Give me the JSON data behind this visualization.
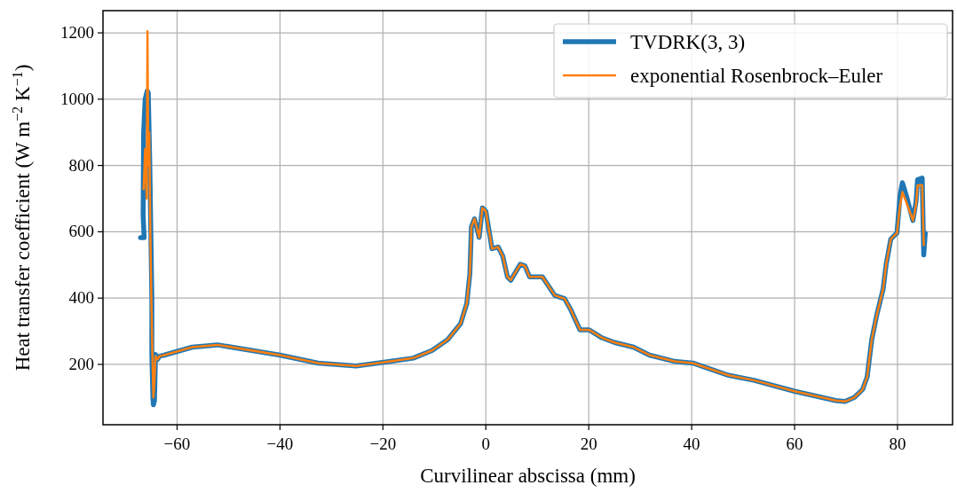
{
  "chart_data": {
    "type": "line",
    "xlabel": "Curvilinear abscissa (mm)",
    "ylabel": "Heat transfer coefficient (W m$^{−2}$ K$^{−1}$)",
    "xlim": [
      -74.4,
      90.7
    ],
    "ylim": [
      18,
      1267
    ],
    "xticks": [
      {
        "value": -60,
        "label": "−60"
      },
      {
        "value": -40,
        "label": "−40"
      },
      {
        "value": -20,
        "label": "−20"
      },
      0,
      20,
      40,
      60,
      80
    ],
    "yticks": [
      200,
      400,
      600,
      800,
      1000,
      1200
    ],
    "grid": true,
    "legend": "top right",
    "line_style": "solid",
    "marker": "none",
    "series": [
      {
        "name": "TVDRK(3, 3)",
        "color": "#1f77b4",
        "x": [
          -67.1,
          -66.4,
          -66.6,
          -66.5,
          -66.2,
          -65.8,
          -65.6,
          -65.3,
          -65.1,
          -64.9,
          -64.9,
          -64.7,
          -64.6,
          -64.4,
          -64.3,
          -64.2,
          -63.8,
          -63.4,
          -62.5,
          -57.05,
          -52.15,
          -40,
          -32.6,
          -25.2,
          -18.5,
          -14.1,
          -10.45,
          -7.4,
          -4.9,
          -3.7,
          -3.1,
          -2.8,
          -2.2,
          -1.3,
          -0.66,
          0,
          1.2,
          2.4,
          3.3,
          4.2,
          4.85,
          6.7,
          7.6,
          8.5,
          11,
          12.2,
          13.4,
          15.3,
          16.5,
          18.3,
          20.1,
          22.6,
          25,
          28.7,
          31.8,
          36.7,
          40.2,
          47.2,
          52.1,
          60,
          68,
          69.8,
          71.6,
          73.2,
          74.1,
          75,
          76,
          77.2,
          77.8,
          78.7,
          79.9,
          80.5,
          80.95,
          81.7,
          83,
          83.6,
          83.9,
          84.8,
          85.1,
          85.4
        ],
        "values": [
          582,
          582,
          650,
          900,
          1000,
          1025,
          1020,
          800,
          600,
          400,
          230,
          100,
          78,
          90,
          150,
          230,
          215,
          225,
          228,
          252,
          259,
          228,
          204,
          195,
          209,
          219,
          242,
          275,
          323,
          384,
          474,
          615,
          639,
          583,
          672,
          662,
          549,
          554,
          526,
          464,
          454,
          502,
          497,
          464,
          464,
          436,
          408,
          398,
          365,
          304,
          304,
          280,
          266,
          252,
          228,
          209,
          204,
          167,
          152,
          119,
          91,
          88,
          100,
          124,
          162,
          275,
          351,
          427,
          502,
          578,
          597,
          710,
          748,
          710,
          634,
          691,
          757,
          762,
          530,
          596
        ]
      },
      {
        "name": "exponential Rosenbrock–Euler",
        "color": "#ff7f0e",
        "x": [
          -66.5,
          -66.2,
          -65.9,
          -65.75,
          -65.6,
          -65.4,
          -65.2,
          -65,
          -64.8,
          -64.6,
          -64.4,
          -64.2,
          -63.8,
          -63.4,
          -62.5,
          -57.05,
          -52.15,
          -40,
          -32.6,
          -25.2,
          -18.5,
          -14.1,
          -10.45,
          -7.4,
          -4.9,
          -3.7,
          -3.1,
          -2.8,
          -2.2,
          -1.3,
          -0.66,
          0,
          1.2,
          2.4,
          3.3,
          4.2,
          4.85,
          6.7,
          7.6,
          8.5,
          11,
          12.2,
          13.4,
          15.3,
          16.5,
          18.3,
          20.1,
          22.6,
          25,
          28.7,
          31.8,
          36.7,
          40.2,
          47.2,
          52.1,
          60,
          68,
          69.8,
          71.6,
          73.2,
          74.1,
          75,
          76,
          77.2,
          77.8,
          78.7,
          79.9,
          80.5,
          80.95,
          81.7,
          83,
          83.6,
          83.9,
          84.8,
          85.1
        ],
        "values": [
          729,
          850,
          700,
          1205,
          800,
          900,
          600,
          400,
          230,
          100,
          150,
          225,
          215,
          225,
          228,
          252,
          259,
          228,
          204,
          195,
          209,
          219,
          242,
          275,
          323,
          384,
          474,
          615,
          639,
          583,
          672,
          662,
          549,
          554,
          526,
          464,
          454,
          502,
          497,
          464,
          464,
          436,
          408,
          398,
          365,
          304,
          304,
          280,
          266,
          252,
          228,
          209,
          204,
          167,
          152,
          119,
          91,
          88,
          100,
          124,
          162,
          275,
          351,
          427,
          502,
          578,
          597,
          680,
          720,
          690,
          634,
          680,
          740,
          740,
          560
        ]
      }
    ]
  }
}
